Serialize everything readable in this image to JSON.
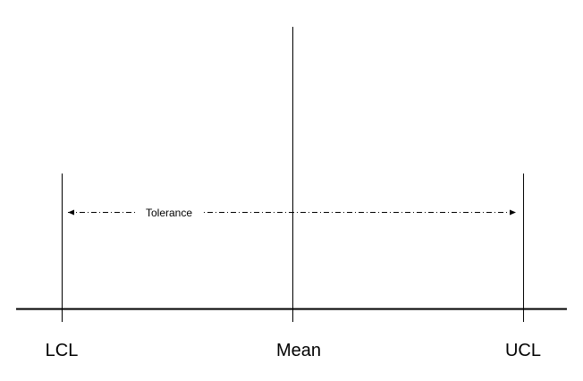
{
  "diagram": {
    "labels": {
      "lcl": "LCL",
      "mean": "Mean",
      "ucl": "UCL"
    },
    "tolerance_label": "Tolerance",
    "colors": {
      "line": "#000000",
      "background": "#ffffff"
    }
  }
}
